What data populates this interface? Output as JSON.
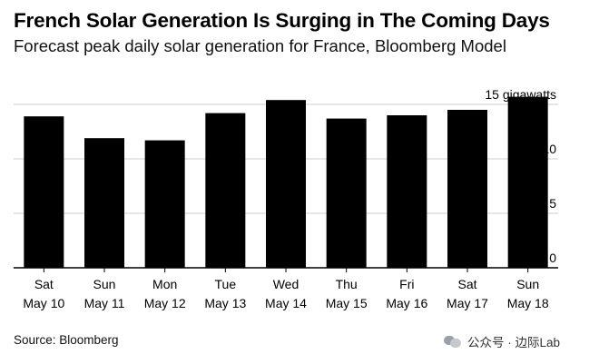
{
  "title": "French Solar Generation Is Surging in The Coming Days",
  "subtitle": "Forecast peak daily solar generation for France, Bloomberg Model",
  "source": "Source: Bloomberg",
  "watermark": "公众号 · 边际Lab",
  "watermark_icon": "wechat-icon",
  "colors": {
    "bar": "#000000",
    "grid": "#cccccc",
    "axis": "#000000",
    "text": "#000000"
  },
  "chart_data": {
    "type": "bar",
    "categories_line1": [
      "Sat",
      "Sun",
      "Mon",
      "Tue",
      "Wed",
      "Thu",
      "Fri",
      "Sat",
      "Sun"
    ],
    "categories_line2": [
      "May 10",
      "May 11",
      "May 12",
      "May 13",
      "May 14",
      "May 15",
      "May 16",
      "May 17",
      "May 18"
    ],
    "values": [
      13.9,
      11.9,
      11.7,
      14.2,
      15.4,
      13.7,
      14.0,
      14.5,
      15.7
    ],
    "ylim": [
      0,
      15
    ],
    "yticks": [
      0,
      5,
      10,
      15
    ],
    "ytick_labels": [
      "0",
      "5",
      "10",
      "15 gigawatts"
    ],
    "grid": true,
    "ylabel": "",
    "xlabel": ""
  }
}
